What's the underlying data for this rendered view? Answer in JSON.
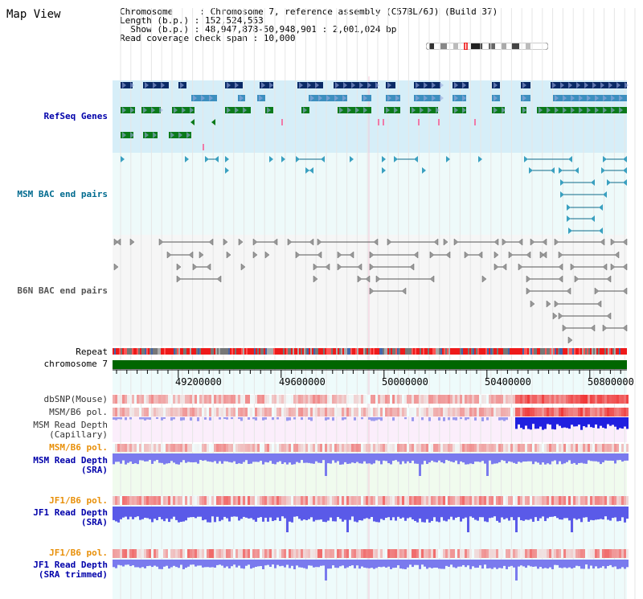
{
  "title": "Map View",
  "info": {
    "line1": "Chromosome     : Chromosome 7, reference assembly (C57BL/6J) (Build 37)",
    "line2": "Length (b.p.) : 152,524,553",
    "line3": "  Show (b.p.) : 48,947,878-50,948,901 : 2,001,024 bp",
    "line4": "Read coverage check span : 10,000"
  },
  "tracks": {
    "refseq": "RefSeq Genes",
    "msm_bac": "MSM BAC end pairs",
    "b6n_bac": "B6N BAC end pairs",
    "repeat": "Repeat",
    "chromosome": "chromosome 7",
    "dbsnp": "dbSNP(Mouse)",
    "msm_b6_pol_1": "MSM/B6 pol.",
    "msm_depth_cap_1": "MSM Read Depth",
    "msm_depth_cap_2": "(Capillary)",
    "msm_b6_pol_2": "MSM/B6 pol.",
    "msm_depth_sra_1": "MSM Read Depth",
    "msm_depth_sra_2": "(SRA)",
    "jf1_b6_pol_1": "JF1/B6 pol.",
    "jf1_depth_sra_1": "JF1 Read Depth",
    "jf1_depth_sra_2": "(SRA)",
    "jf1_b6_pol_2": "JF1/B6 pol.",
    "jf1_depth_trim_1": "JF1 Read Depth",
    "jf1_depth_trim_2": "(SRA trimmed)"
  },
  "axis": {
    "ticks": [
      "49200000",
      "49600000",
      "50000000",
      "50400000",
      "50800000"
    ]
  },
  "colors": {
    "refseq_bg": "#d6eef8",
    "bac_bg": "#eefafa",
    "b6n_bg": "#f6f6f6",
    "chrom_bar": "#006600",
    "navy_gene": "#0a2a66",
    "mid_gene": "#3c8fbf",
    "green_gene": "#0a7a1a",
    "depth_blue": "#4a4aee"
  }
}
